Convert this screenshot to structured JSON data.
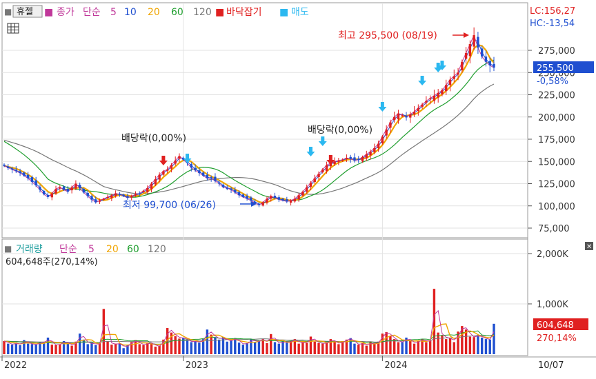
{
  "colors": {
    "up": "#e02020",
    "down": "#1f4fd0",
    "ma5": "#c0389a",
    "ma10": "#1f4fd0",
    "ma20": "#f0a500",
    "ma60": "#1f9e2e",
    "ma120": "#777777",
    "buy_arrow": "#2bb8f0",
    "sell_arrow": "#e02020",
    "price_badge": "#1f4fd0"
  },
  "toolbar": {
    "box_icon": "■",
    "stock_name": "휴젤",
    "price_label": "종가",
    "ma_label": "단순",
    "ma_periods": [
      "5",
      "10",
      "20",
      "60",
      "120"
    ],
    "signal1": "바닥잡기",
    "signal2": "매도"
  },
  "lc_hc": {
    "lc": "LC:156,27",
    "hc": "HC:-13,54"
  },
  "price_panel": {
    "y_ticks": [
      "275,000",
      "250,000",
      "225,000",
      "200,000",
      "175,000",
      "150,000",
      "125,000",
      "100,000",
      "75,000"
    ],
    "current_price": "255,500",
    "change_pct": "-0,58%",
    "high_label": "최고 295,500 (08/19)",
    "low_label": "최저 99,700 (06/26)",
    "dividend_label": "배당락(0,00%)",
    "icons": {
      "grid": "table-icon"
    }
  },
  "volume_panel": {
    "title": "거래량",
    "ma_label": "단순",
    "ma_periods": [
      "5",
      "20",
      "60",
      "120"
    ],
    "info": "604,648주(270,14%)",
    "y_ticks": [
      "2,000K",
      "1,000K"
    ],
    "current_volume": "604,648",
    "current_pct": "270,14%",
    "close_icon": "✕"
  },
  "x_axis": {
    "labels": [
      "2022",
      "2023",
      "2024"
    ],
    "last_date": "10/07"
  },
  "chart_data": {
    "type": "candlestick",
    "x_axis_years": [
      "2022",
      "2023",
      "2024"
    ],
    "price_ylim": [
      65000,
      305000
    ],
    "volume_ylim": [
      0,
      2800
    ],
    "volume_unit": "K shares",
    "price_close_weekly": [
      145000,
      143000,
      141000,
      139000,
      137000,
      134000,
      131000,
      127000,
      123000,
      118000,
      113000,
      110000,
      114000,
      119000,
      121000,
      118000,
      116000,
      121000,
      125000,
      120000,
      115000,
      111000,
      107000,
      104000,
      106000,
      108000,
      110000,
      112000,
      114000,
      113000,
      111000,
      109000,
      111000,
      113000,
      114000,
      117000,
      120000,
      125000,
      130000,
      135000,
      139000,
      141000,
      146000,
      151000,
      156000,
      152000,
      148000,
      143000,
      140000,
      137000,
      134000,
      131000,
      131000,
      128000,
      125000,
      121000,
      120000,
      118000,
      115000,
      112000,
      110000,
      108000,
      106000,
      103000,
      101000,
      104000,
      108000,
      111000,
      109000,
      107000,
      106000,
      105000,
      106000,
      108000,
      112000,
      116000,
      121000,
      126000,
      131000,
      136000,
      141000,
      146000,
      148000,
      150000,
      151000,
      152000,
      154000,
      153000,
      151000,
      152000,
      155000,
      158000,
      161000,
      165000,
      170000,
      178000,
      186000,
      194000,
      200000,
      204000,
      202000,
      200000,
      203000,
      206000,
      210000,
      214000,
      218000,
      221000,
      224000,
      227000,
      230000,
      236000,
      242000,
      246000,
      250000,
      262000,
      272000,
      282000,
      292000,
      278000,
      268000,
      262000,
      258000,
      255500
    ],
    "volume_weekly_k": [
      260,
      210,
      190,
      230,
      180,
      280,
      210,
      200,
      190,
      240,
      230,
      330,
      190,
      180,
      200,
      260,
      210,
      170,
      250,
      410,
      290,
      200,
      230,
      180,
      220,
      900,
      260,
      190,
      210,
      210,
      120,
      190,
      240,
      280,
      200,
      180,
      230,
      220,
      150,
      170,
      290,
      520,
      430,
      360,
      310,
      330,
      270,
      240,
      260,
      230,
      300,
      490,
      390,
      340,
      290,
      340,
      250,
      280,
      320,
      230,
      190,
      220,
      300,
      240,
      270,
      300,
      220,
      400,
      240,
      210,
      260,
      230,
      260,
      300,
      210,
      240,
      220,
      350,
      250,
      220,
      210,
      230,
      300,
      240,
      200,
      260,
      290,
      320,
      210,
      190,
      220,
      170,
      240,
      200,
      250,
      410,
      440,
      360,
      300,
      240,
      240,
      330,
      260,
      210,
      270,
      300,
      240,
      270,
      1300,
      430,
      380,
      300,
      330,
      240,
      450,
      560,
      490,
      350,
      340,
      380,
      330,
      300,
      290,
      605
    ],
    "annotations": {
      "high": {
        "value": 295500,
        "date": "08/19"
      },
      "low": {
        "value": 99700,
        "date": "06/26"
      },
      "dividend_ex": [
        "배당락(0,00%)",
        "배당락(0,00%)"
      ]
    },
    "last_close": 255500,
    "last_change_pct": -0.58,
    "last_volume": 604648,
    "last_volume_pct": 270.14,
    "grid": true
  }
}
